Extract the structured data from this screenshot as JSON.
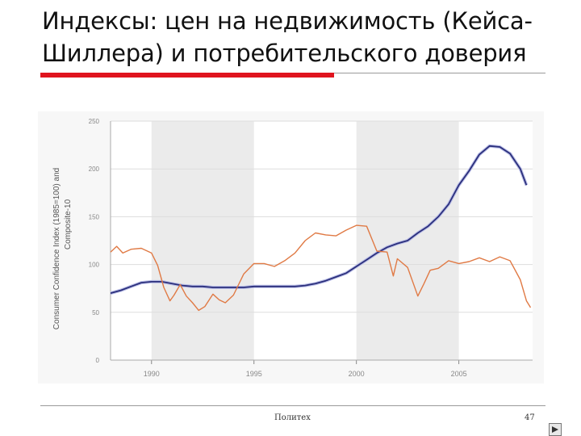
{
  "slide": {
    "title": "Индексы: цен на недвижимость (Кейса-Шиллера) и потребительского доверия",
    "footer": "Политех",
    "page_number": "47"
  },
  "colors": {
    "accent_red": "#e0141e",
    "case_shiller": "#2b2f7c",
    "consumer_confidence": "#e07a45",
    "recession_band": "#ebebeb"
  },
  "icons": {
    "nav": "next-slide-arrow-icon"
  },
  "chart_data": {
    "type": "line",
    "title": "",
    "ylabel_line1": "Consumer Confidence Index (1985=100) and",
    "ylabel_line2": "Composite-10",
    "xlabel": "",
    "xlim": [
      1988,
      2008.6
    ],
    "ylim": [
      0,
      250
    ],
    "x_ticks": [
      1990,
      1995,
      2000,
      2005
    ],
    "x_tick_labels": [
      "1990",
      "1995",
      "2000",
      "2005"
    ],
    "y_ticks": [
      0,
      50,
      100,
      150,
      200,
      250
    ],
    "y_tick_labels": [
      "0",
      "50",
      "100",
      "150",
      "200",
      "250"
    ],
    "grid": true,
    "shaded_periods": [
      [
        1990,
        1995
      ],
      [
        2000,
        2005
      ]
    ],
    "series": [
      {
        "color": "#2b2f7c",
        "points": [
          [
            1988.0,
            70
          ],
          [
            1988.5,
            73
          ],
          [
            1989.0,
            77
          ],
          [
            1989.5,
            81
          ],
          [
            1990.0,
            82
          ],
          [
            1990.5,
            82
          ],
          [
            1991.0,
            80
          ],
          [
            1991.5,
            78
          ],
          [
            1992.0,
            77
          ],
          [
            1992.5,
            77
          ],
          [
            1993.0,
            76
          ],
          [
            1993.5,
            76
          ],
          [
            1994.0,
            76
          ],
          [
            1994.5,
            76
          ],
          [
            1995.0,
            77
          ],
          [
            1995.5,
            77
          ],
          [
            1996.0,
            77
          ],
          [
            1996.5,
            77
          ],
          [
            1997.0,
            77
          ],
          [
            1997.5,
            78
          ],
          [
            1998.0,
            80
          ],
          [
            1998.5,
            83
          ],
          [
            1999.0,
            87
          ],
          [
            1999.5,
            91
          ],
          [
            2000.0,
            98
          ],
          [
            2000.5,
            105
          ],
          [
            2001.0,
            112
          ],
          [
            2001.5,
            118
          ],
          [
            2002.0,
            122
          ],
          [
            2002.5,
            125
          ],
          [
            2003.0,
            133
          ],
          [
            2003.5,
            140
          ],
          [
            2004.0,
            150
          ],
          [
            2004.5,
            163
          ],
          [
            2005.0,
            183
          ],
          [
            2005.5,
            198
          ],
          [
            2006.0,
            215
          ],
          [
            2006.5,
            224
          ],
          [
            2007.0,
            223
          ],
          [
            2007.5,
            216
          ],
          [
            2008.0,
            200
          ],
          [
            2008.3,
            183
          ]
        ]
      },
      {
        "color": "#e07a45",
        "points": [
          [
            1988.0,
            113
          ],
          [
            1988.3,
            119
          ],
          [
            1988.6,
            112
          ],
          [
            1989.0,
            116
          ],
          [
            1989.5,
            117
          ],
          [
            1990.0,
            112
          ],
          [
            1990.3,
            99
          ],
          [
            1990.6,
            76
          ],
          [
            1990.9,
            62
          ],
          [
            1991.1,
            68
          ],
          [
            1991.4,
            79
          ],
          [
            1991.7,
            67
          ],
          [
            1992.0,
            60
          ],
          [
            1992.3,
            52
          ],
          [
            1992.6,
            56
          ],
          [
            1993.0,
            69
          ],
          [
            1993.3,
            63
          ],
          [
            1993.6,
            60
          ],
          [
            1994.0,
            68
          ],
          [
            1994.5,
            90
          ],
          [
            1995.0,
            101
          ],
          [
            1995.5,
            101
          ],
          [
            1996.0,
            98
          ],
          [
            1996.5,
            104
          ],
          [
            1997.0,
            112
          ],
          [
            1997.5,
            125
          ],
          [
            1998.0,
            133
          ],
          [
            1998.5,
            131
          ],
          [
            1999.0,
            130
          ],
          [
            1999.5,
            136
          ],
          [
            2000.0,
            141
          ],
          [
            2000.5,
            140
          ],
          [
            2001.0,
            114
          ],
          [
            2001.5,
            113
          ],
          [
            2001.8,
            88
          ],
          [
            2002.0,
            106
          ],
          [
            2002.5,
            97
          ],
          [
            2003.0,
            67
          ],
          [
            2003.3,
            80
          ],
          [
            2003.6,
            94
          ],
          [
            2004.0,
            96
          ],
          [
            2004.5,
            104
          ],
          [
            2005.0,
            101
          ],
          [
            2005.5,
            103
          ],
          [
            2006.0,
            107
          ],
          [
            2006.5,
            103
          ],
          [
            2007.0,
            108
          ],
          [
            2007.5,
            104
          ],
          [
            2008.0,
            84
          ],
          [
            2008.3,
            62
          ],
          [
            2008.5,
            55
          ]
        ]
      }
    ]
  }
}
